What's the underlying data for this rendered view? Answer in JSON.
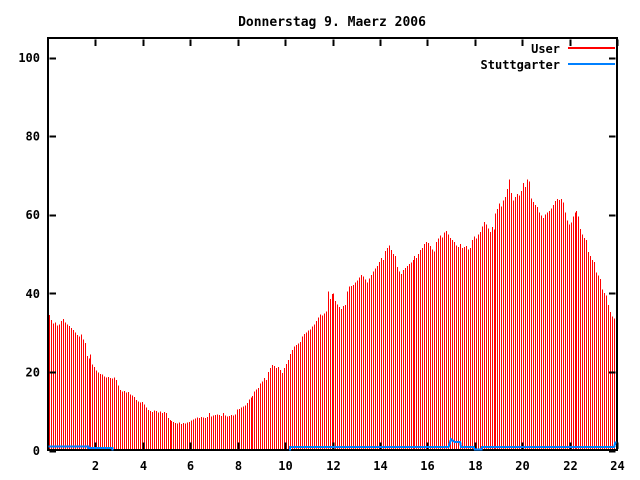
{
  "chart_data": {
    "type": "bar",
    "title": "Donnerstag 9. Maerz 2006",
    "xlabel": "",
    "ylabel": "",
    "xlim": [
      0,
      24
    ],
    "ylim": [
      0,
      100
    ],
    "x_ticks": [
      2,
      4,
      6,
      8,
      10,
      12,
      14,
      16,
      18,
      20,
      22,
      24
    ],
    "y_ticks": [
      0,
      20,
      40,
      60,
      80,
      100
    ],
    "grid": false,
    "legend_position": "top-right-inside",
    "bin_minutes": 5,
    "series": [
      {
        "name": "User",
        "color": "#ff0000",
        "style": "impulses",
        "values": [
          34.5,
          33.2,
          32.3,
          32.6,
          31.8,
          32.1,
          33.0,
          33.5,
          32.6,
          32.1,
          31.7,
          31.2,
          30.6,
          30.0,
          29.4,
          29.0,
          29.5,
          28.2,
          27.4,
          24.0,
          23.4,
          24.4,
          21.9,
          21.2,
          20.4,
          19.8,
          19.5,
          19.3,
          18.8,
          18.6,
          18.7,
          18.4,
          18.3,
          18.6,
          17.9,
          16.6,
          15.4,
          15.0,
          15.2,
          14.8,
          14.9,
          14.2,
          14.0,
          13.6,
          12.9,
          12.5,
          12.2,
          12.4,
          11.7,
          11.0,
          10.3,
          10.0,
          9.8,
          10.2,
          10.0,
          9.7,
          9.9,
          9.6,
          9.8,
          9.5,
          8.3,
          7.8,
          7.5,
          7.2,
          7.0,
          6.9,
          7.1,
          6.8,
          7.0,
          6.9,
          7.1,
          7.3,
          7.6,
          7.9,
          8.2,
          8.4,
          8.3,
          8.5,
          8.4,
          8.3,
          8.5,
          9.6,
          8.7,
          8.9,
          9.0,
          9.1,
          9.0,
          8.8,
          9.6,
          8.9,
          8.7,
          8.8,
          9.0,
          8.9,
          9.2,
          10.4,
          10.6,
          10.9,
          11.2,
          11.5,
          12.1,
          13.0,
          13.5,
          13.9,
          15.0,
          15.5,
          15.9,
          17.0,
          17.5,
          18.4,
          17.9,
          20.0,
          21.0,
          21.8,
          21.5,
          21.0,
          21.3,
          20.5,
          19.7,
          21.0,
          22.0,
          23.0,
          24.5,
          25.6,
          26.5,
          26.8,
          27.2,
          27.6,
          29.0,
          29.6,
          30.0,
          30.5,
          30.8,
          31.5,
          32.0,
          33.0,
          33.8,
          34.6,
          34.4,
          34.8,
          35.4,
          40.5,
          38.5,
          39.8,
          40.0,
          38.0,
          37.2,
          36.5,
          36.0,
          36.8,
          37.0,
          40.4,
          41.7,
          41.9,
          42.1,
          42.8,
          43.2,
          44.0,
          44.7,
          44.3,
          43.5,
          42.8,
          43.8,
          44.7,
          45.5,
          46.3,
          46.9,
          48.0,
          49.0,
          48.5,
          50.8,
          51.5,
          52.1,
          51.0,
          50.0,
          49.5,
          46.7,
          45.5,
          44.9,
          45.9,
          46.5,
          47.0,
          47.4,
          47.8,
          48.5,
          49.5,
          49.0,
          50.0,
          51.0,
          51.5,
          52.5,
          53.0,
          52.8,
          52.0,
          51.2,
          50.6,
          53.0,
          54.0,
          54.7,
          54.2,
          55.5,
          55.8,
          55.0,
          54.1,
          53.5,
          53.0,
          52.1,
          51.8,
          52.5,
          51.5,
          51.8,
          52.0,
          51.1,
          51.5,
          53.5,
          54.5,
          54.0,
          55.0,
          55.6,
          57.0,
          58.2,
          57.5,
          56.5,
          55.6,
          56.9,
          56.2,
          60.3,
          61.5,
          62.8,
          62.1,
          63.6,
          64.5,
          66.5,
          68.9,
          65.5,
          63.6,
          64.5,
          65.3,
          64.9,
          66.0,
          68.1,
          67.0,
          69.0,
          68.4,
          64.1,
          63.2,
          62.5,
          61.9,
          60.6,
          59.8,
          59.1,
          60.0,
          60.5,
          61.0,
          61.6,
          62.5,
          63.5,
          64.0,
          63.8,
          64.0,
          63.1,
          60.5,
          58.5,
          57.5,
          58.0,
          59.5,
          60.5,
          61.0,
          59.5,
          56.3,
          55.0,
          54.1,
          53.5,
          50.5,
          49.5,
          48.5,
          48.0,
          45.3,
          44.5,
          43.6,
          41.0,
          40.1,
          39.5,
          37.0,
          35.3,
          34.1,
          33.6,
          34.6
        ]
      },
      {
        "name": "Stuttgarter",
        "color": "#0080ff",
        "style": "line",
        "segments": [
          [
            [
              0.02,
              1.0
            ],
            [
              1.7,
              1.0
            ],
            [
              1.7,
              0.6
            ],
            [
              2.72,
              0.6
            ],
            [
              2.72,
              0.05
            ]
          ],
          [
            [
              10.2,
              0.05
            ],
            [
              10.2,
              0.9
            ],
            [
              16.9,
              0.9
            ],
            [
              17.0,
              2.9
            ],
            [
              17.1,
              2.4
            ],
            [
              17.15,
              2.2
            ],
            [
              17.38,
              2.2
            ],
            [
              17.42,
              0.9
            ],
            [
              17.95,
              0.9
            ],
            [
              18.0,
              0.25
            ],
            [
              18.28,
              0.25
            ],
            [
              18.3,
              0.9
            ],
            [
              23.88,
              0.9
            ],
            [
              23.93,
              2.0
            ],
            [
              23.98,
              2.0
            ]
          ]
        ]
      }
    ]
  }
}
